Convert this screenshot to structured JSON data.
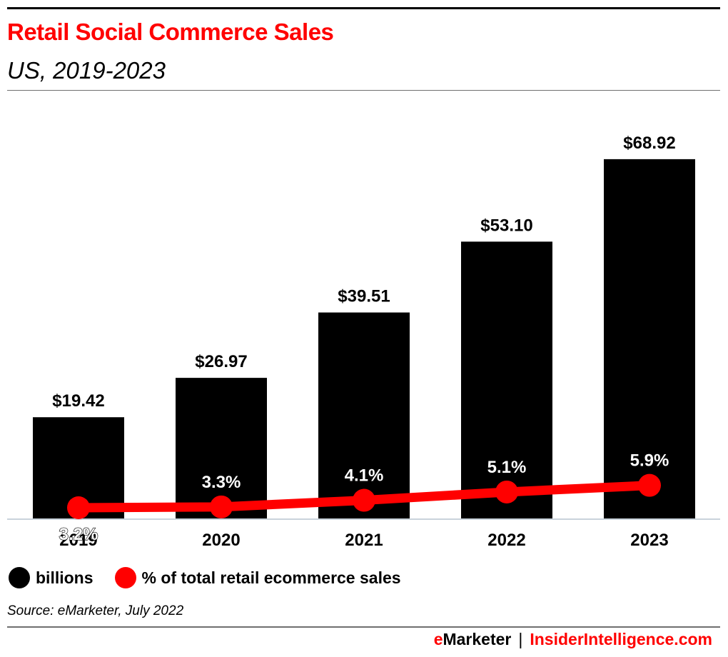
{
  "header": {
    "title": "Retail Social Commerce Sales",
    "subtitle": "US, 2019-2023"
  },
  "colors": {
    "title": "#ff0000",
    "bar": "#000000",
    "line": "#ff0000",
    "axis": "#c9d3dc",
    "brand_accent": "#ff0000",
    "rule": "#6f6f6f"
  },
  "chart_data": {
    "type": "bar",
    "categories": [
      "2019",
      "2020",
      "2021",
      "2022",
      "2023"
    ],
    "series": [
      {
        "name": "billions",
        "type": "bar",
        "values": [
          19.42,
          26.97,
          39.51,
          53.1,
          68.92
        ],
        "labels": [
          "$19.42",
          "$26.97",
          "$39.51",
          "$53.10",
          "$68.92"
        ],
        "color": "#000000"
      },
      {
        "name": "% of total retail ecommerce sales",
        "type": "line",
        "values": [
          3.2,
          3.3,
          4.1,
          5.1,
          5.9
        ],
        "labels": [
          "3.2%",
          "3.3%",
          "4.1%",
          "5.1%",
          "5.9%"
        ],
        "color": "#ff0000"
      }
    ],
    "legend_position": "bottom-left",
    "grid": false
  },
  "legend": {
    "items": [
      {
        "label": "billions",
        "color": "#000000",
        "icon": "black-circle-icon"
      },
      {
        "label": "% of total retail ecommerce sales",
        "color": "#ff0000",
        "icon": "red-circle-icon"
      }
    ]
  },
  "footer": {
    "source": "Source: eMarketer, July 2022",
    "brand_left_accent": "e",
    "brand_left_rest": "Marketer",
    "separator": "|",
    "brand_right": "InsiderIntelligence.com"
  }
}
